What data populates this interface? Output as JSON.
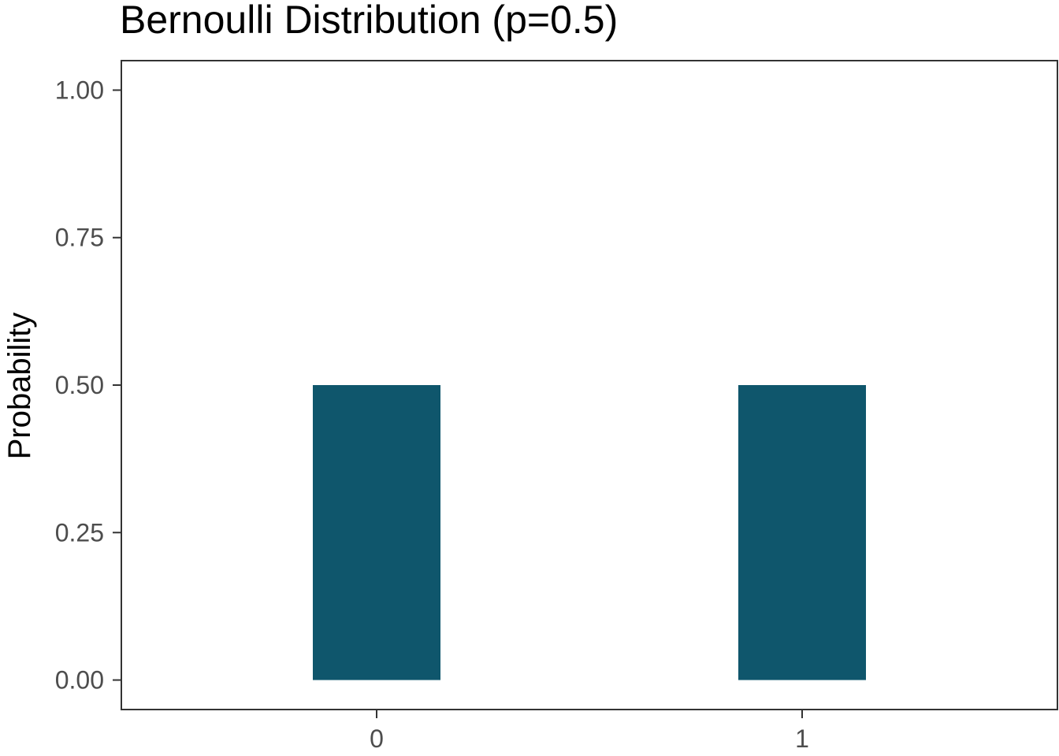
{
  "chart_data": {
    "type": "bar",
    "title": "Bernoulli Distribution (p=0.5)",
    "xlabel": "",
    "ylabel": "Probability",
    "categories": [
      "0",
      "1"
    ],
    "values": [
      0.5,
      0.5
    ],
    "ylim": [
      -0.05,
      1.05
    ],
    "yticks": [
      0,
      0.25,
      0.5,
      0.75,
      1
    ],
    "ytick_labels": [
      "0.00",
      "0.25",
      "0.50",
      "0.75",
      "1.00"
    ],
    "grid": false,
    "legend": "none",
    "bar_color": "#0f566c"
  }
}
